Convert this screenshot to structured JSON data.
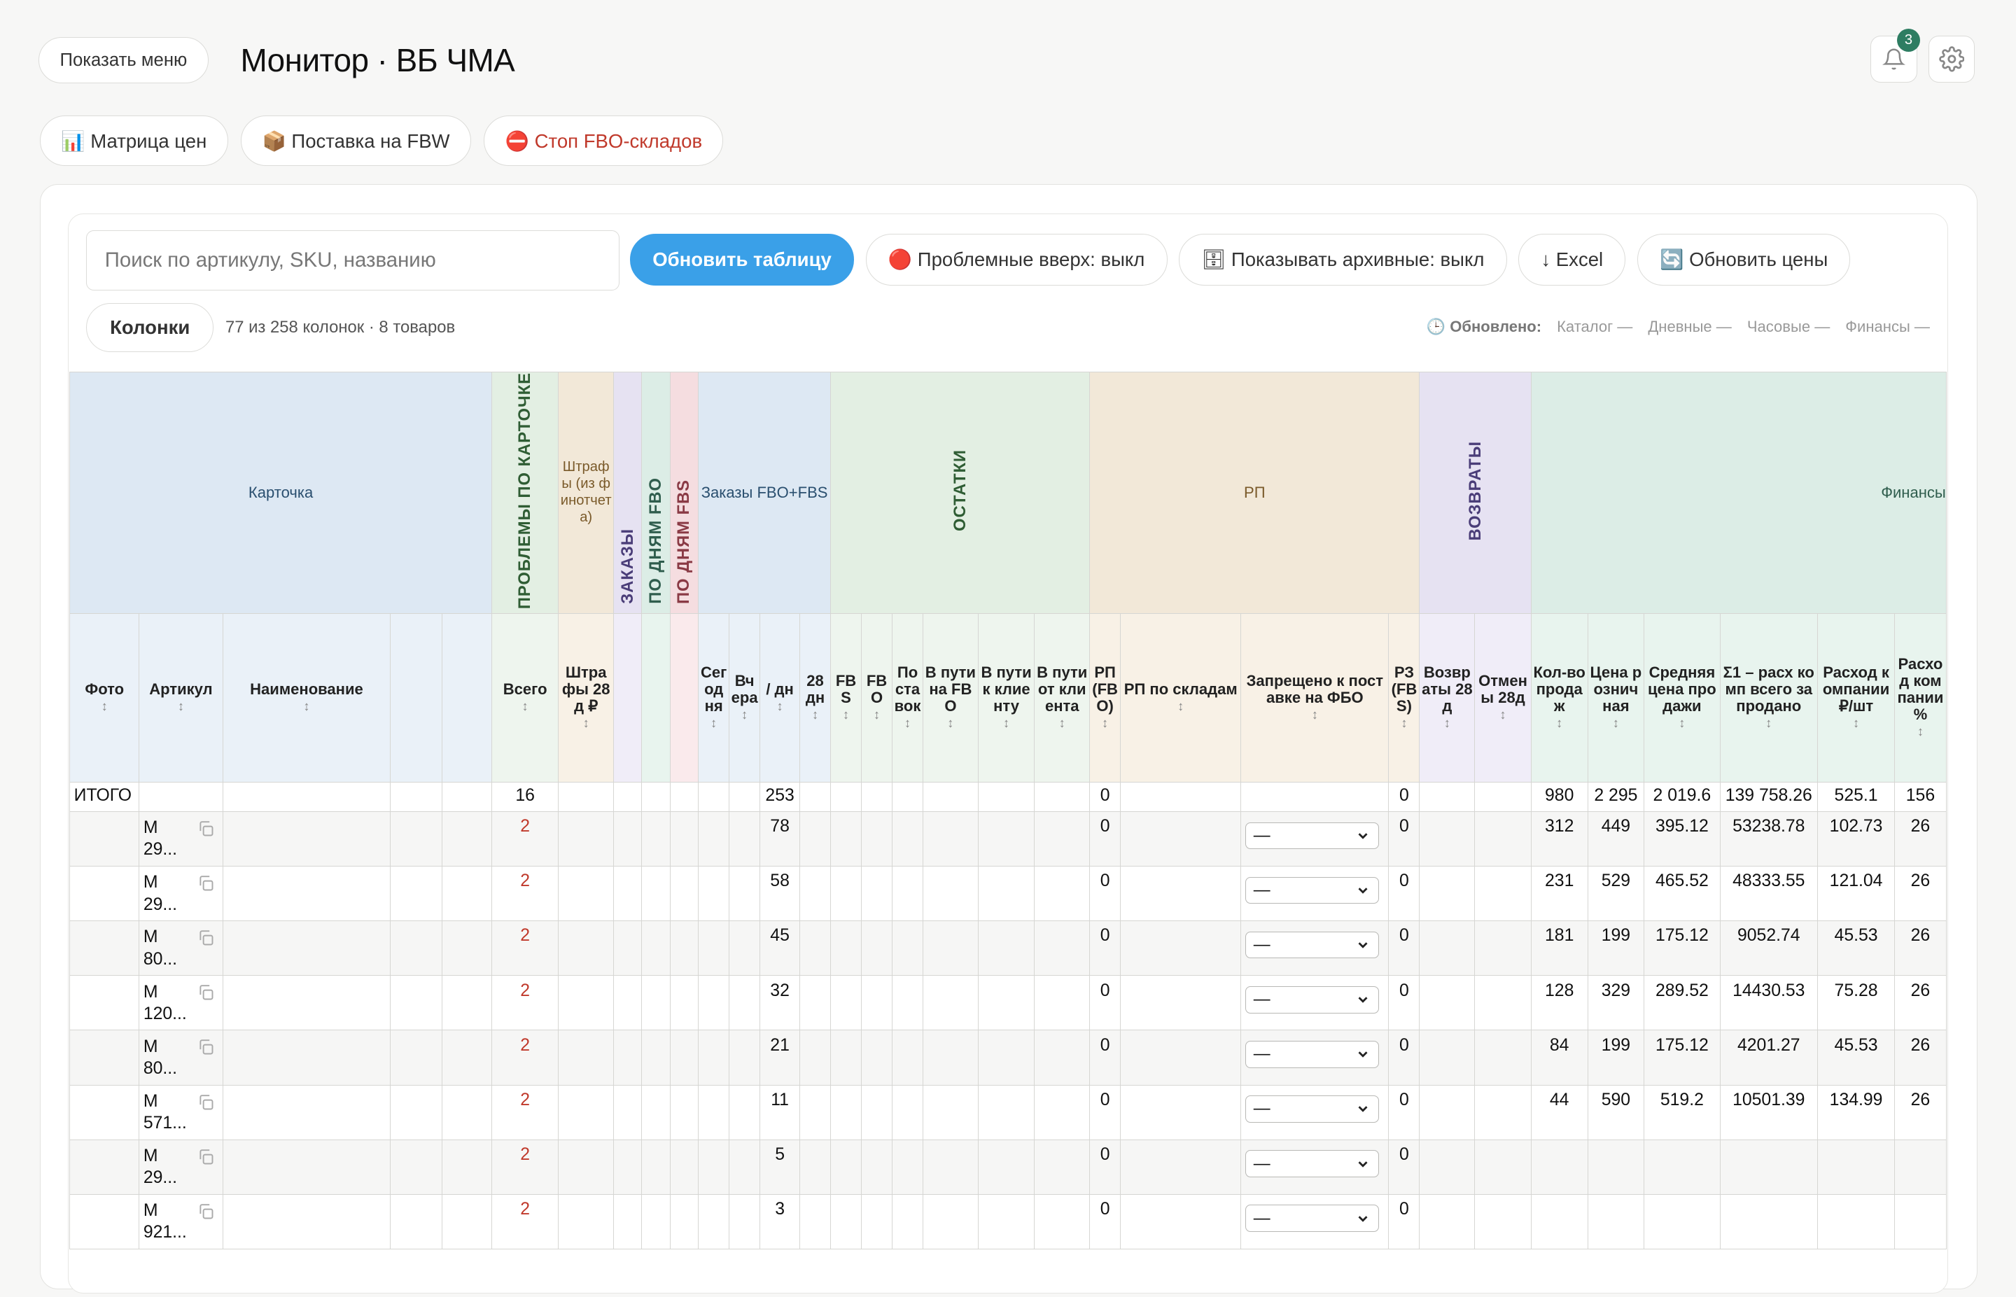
{
  "header": {
    "menu_button": "Показать меню",
    "title": "Монитор · ВБ ЧМА",
    "notifications_count": "3"
  },
  "nav": {
    "price_matrix": "📊 Матрица цен",
    "fbw_supply": "📦 Поставка на FBW",
    "stop_fbo": "⛔ Стоп FBO-складов"
  },
  "toolbar": {
    "search_placeholder": "Поиск по артикулу, SKU, названию",
    "refresh_table": "Обновить таблицу",
    "problems_up": "🔴 Проблемные вверх: выкл",
    "show_archive": "🗄 Показывать архивные: выкл",
    "excel": "↓ Excel",
    "refresh_prices": "🔄 Обновить цены",
    "columns": "Колонки",
    "columns_info": "77 из 258 колонок · 8 товаров"
  },
  "updated": {
    "label": "🕒 Обновлено:",
    "catalog": "Каталог —",
    "daily": "Дневные —",
    "hourly": "Часовые —",
    "finance": "Финансы —"
  },
  "groups": {
    "card": "Карточка",
    "problems": "ПРОБЛЕМЫ ПО КАРТОЧКЕ",
    "fines": "Штрафы (из финотчета)",
    "orders": "ЗАКАЗЫ",
    "by_days_fbo": "ПО ДНЯМ FBO",
    "by_days_fbs": "ПО ДНЯМ FBS",
    "orders_fbo_fbs": "Заказы FBO+FBS",
    "stock": "ОСТАТКИ",
    "rp": "РП",
    "returns": "ВОЗВРАТЫ",
    "finance": "Финансы"
  },
  "columns": {
    "photo": "Фото",
    "article": "Артикул",
    "name": "Наименование",
    "total": "Всего",
    "fines28": "Штрафы 28д ₽",
    "today": "Сегодня",
    "yesterday": "Вчера",
    "per_day": "/ дн",
    "d28": "28 дн",
    "fbs": "FBS",
    "fbo": "FBO",
    "supply": "Поставок",
    "transit_fbo": "В пути на FBO",
    "to_client": "В пути к клиенту",
    "from_client": "В пути от клиента",
    "rp_fbo": "РП (FBO)",
    "rp_wh": "РП по складам",
    "ban": "Запрещено к поставке на ФБО",
    "rp_fbs": "РЗ (FBS)",
    "returns28": "Возвраты 28д",
    "cancels28": "Отмены 28д",
    "sales_qty": "Кол-во продаж",
    "retail_price": "Цена розничная",
    "avg_price": "Средняя цена продажи",
    "comp_total": "Σ1 – расх комп всего за продано",
    "comp_per": "Расход компании ₽/шт",
    "comp_pct": "Расход компании %"
  },
  "sort_icon": "↕",
  "total_row": {
    "label": "ИТОГО",
    "problems": "16",
    "per_day": "253",
    "rp_fbo": "0",
    "rp_fbs": "0",
    "sales": "980",
    "retail": "2 295",
    "avg": "2 019.6",
    "comp_total": "139 758.26",
    "comp_per": "525.1",
    "comp_pct": "156"
  },
  "select_value": "—",
  "rows": [
    {
      "art1": "М",
      "art2": "29...",
      "problems": "2",
      "per_day": "78",
      "rp_fbo": "0",
      "rp_fbs": "0",
      "sales": "312",
      "retail": "449",
      "avg": "395.12",
      "comp_total": "53238.78",
      "comp_per": "102.73",
      "comp_pct": "26"
    },
    {
      "art1": "М",
      "art2": "29...",
      "problems": "2",
      "per_day": "58",
      "rp_fbo": "0",
      "rp_fbs": "0",
      "sales": "231",
      "retail": "529",
      "avg": "465.52",
      "comp_total": "48333.55",
      "comp_per": "121.04",
      "comp_pct": "26"
    },
    {
      "art1": "М",
      "art2": "80...",
      "problems": "2",
      "per_day": "45",
      "rp_fbo": "0",
      "rp_fbs": "0",
      "sales": "181",
      "retail": "199",
      "avg": "175.12",
      "comp_total": "9052.74",
      "comp_per": "45.53",
      "comp_pct": "26"
    },
    {
      "art1": "М",
      "art2": "120...",
      "problems": "2",
      "per_day": "32",
      "rp_fbo": "0",
      "rp_fbs": "0",
      "sales": "128",
      "retail": "329",
      "avg": "289.52",
      "comp_total": "14430.53",
      "comp_per": "75.28",
      "comp_pct": "26"
    },
    {
      "art1": "М",
      "art2": "80...",
      "problems": "2",
      "per_day": "21",
      "rp_fbo": "0",
      "rp_fbs": "0",
      "sales": "84",
      "retail": "199",
      "avg": "175.12",
      "comp_total": "4201.27",
      "comp_per": "45.53",
      "comp_pct": "26"
    },
    {
      "art1": "М",
      "art2": "571...",
      "problems": "2",
      "per_day": "11",
      "rp_fbo": "0",
      "rp_fbs": "0",
      "sales": "44",
      "retail": "590",
      "avg": "519.2",
      "comp_total": "10501.39",
      "comp_per": "134.99",
      "comp_pct": "26"
    },
    {
      "art1": "М",
      "art2": "29...",
      "problems": "2",
      "per_day": "5",
      "rp_fbo": "0",
      "rp_fbs": "0",
      "sales": "",
      "retail": "",
      "avg": "",
      "comp_total": "",
      "comp_per": "",
      "comp_pct": ""
    },
    {
      "art1": "М",
      "art2": "921...",
      "problems": "2",
      "per_day": "3",
      "rp_fbo": "0",
      "rp_fbs": "0",
      "sales": "",
      "retail": "",
      "avg": "",
      "comp_total": "",
      "comp_per": "",
      "comp_pct": ""
    }
  ]
}
